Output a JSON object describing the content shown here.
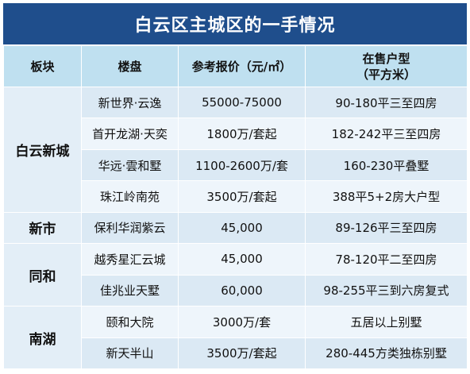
{
  "title": "白云区主城区的一手情况",
  "headers": {
    "block": "板块",
    "project": "楼盘",
    "price": "参考报价（元/㎡）",
    "units_line1": "在售户型",
    "units_line2": "（平方米）"
  },
  "groups": [
    {
      "block": "白云新城",
      "rows": [
        {
          "project": "新世界·云逸",
          "price": "55000-75000",
          "units": "90-180平三至四房"
        },
        {
          "project": "首开龙湖·天奕",
          "price": "1800万/套起",
          "units": "182-242平三至四房"
        },
        {
          "project": "华远·雲和墅",
          "price": "1100-2600万/套",
          "units": "160-230平叠墅"
        },
        {
          "project": "珠江岭南苑",
          "price": "3500万/套起",
          "units": "388平5+2房大户型"
        }
      ]
    },
    {
      "block": "新市",
      "rows": [
        {
          "project": "保利华润紫云",
          "price": "45,000",
          "units": "89-126平三至四房"
        }
      ]
    },
    {
      "block": "同和",
      "rows": [
        {
          "project": "越秀星汇云城",
          "price": "45,000",
          "units": "78-120平二至四房"
        },
        {
          "project": "佳兆业天墅",
          "price": "60,000",
          "units": "98-255平三到六房复式"
        }
      ]
    },
    {
      "block": "南湖",
      "rows": [
        {
          "project": "颐和大院",
          "price": "3000万/套",
          "units": "五居以上别墅"
        },
        {
          "project": "新天半山",
          "price": "3500万/套起",
          "units": "280-445方类独栋别墅"
        }
      ]
    }
  ]
}
